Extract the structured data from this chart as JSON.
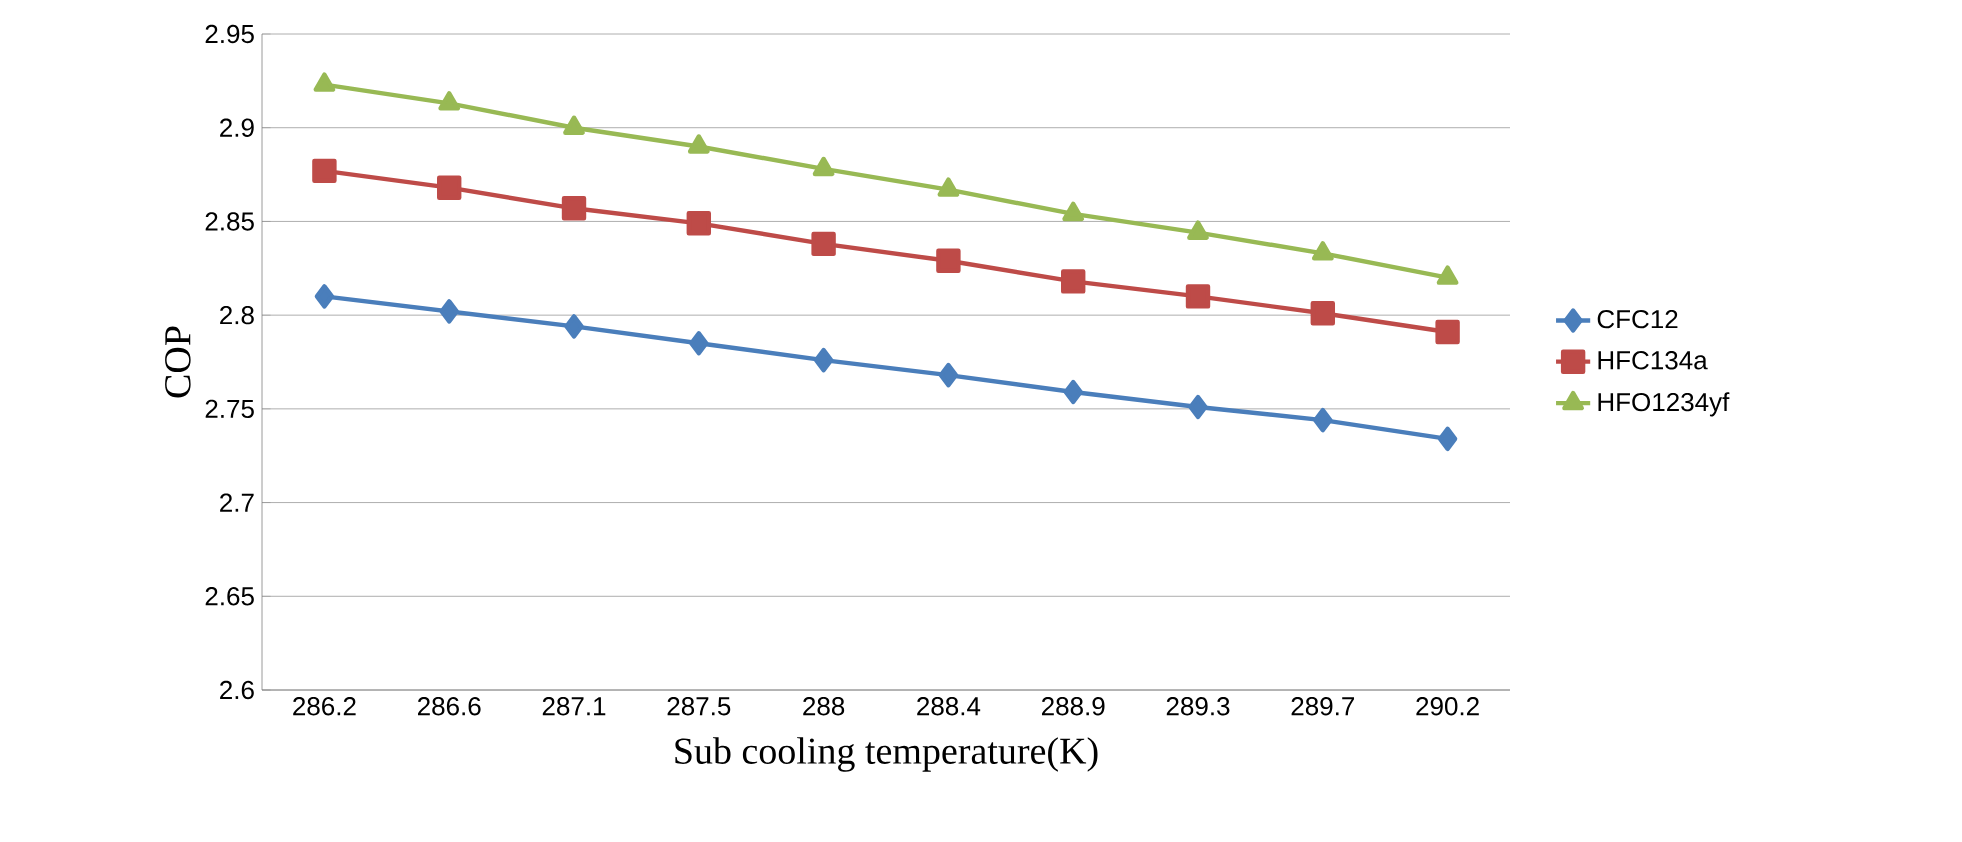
{
  "chart_data": {
    "type": "line",
    "xlabel": "Sub cooling temperature(K)",
    "ylabel": "COP",
    "categories": [
      "286.2",
      "286.6",
      "287.1",
      "287.5",
      "288",
      "288.4",
      "288.9",
      "289.3",
      "289.7",
      "290.2"
    ],
    "series": [
      {
        "name": "CFC12",
        "color": "#4a7ebb",
        "marker": "diamond",
        "values": [
          2.81,
          2.802,
          2.794,
          2.785,
          2.776,
          2.768,
          2.759,
          2.751,
          2.744,
          2.734
        ]
      },
      {
        "name": "HFC134a",
        "color": "#be4b48",
        "marker": "square",
        "values": [
          2.877,
          2.868,
          2.857,
          2.849,
          2.838,
          2.829,
          2.818,
          2.81,
          2.801,
          2.791
        ]
      },
      {
        "name": "HFO1234yf",
        "color": "#98b954",
        "marker": "triangle",
        "values": [
          2.923,
          2.913,
          2.9,
          2.89,
          2.878,
          2.867,
          2.854,
          2.844,
          2.833,
          2.82
        ]
      }
    ],
    "ylim": [
      2.6,
      2.95
    ],
    "yticks": [
      2.6,
      2.65,
      2.7,
      2.75,
      2.8,
      2.85,
      2.9,
      2.95
    ],
    "grid": "y",
    "legend": "right",
    "line_style": "solid"
  }
}
